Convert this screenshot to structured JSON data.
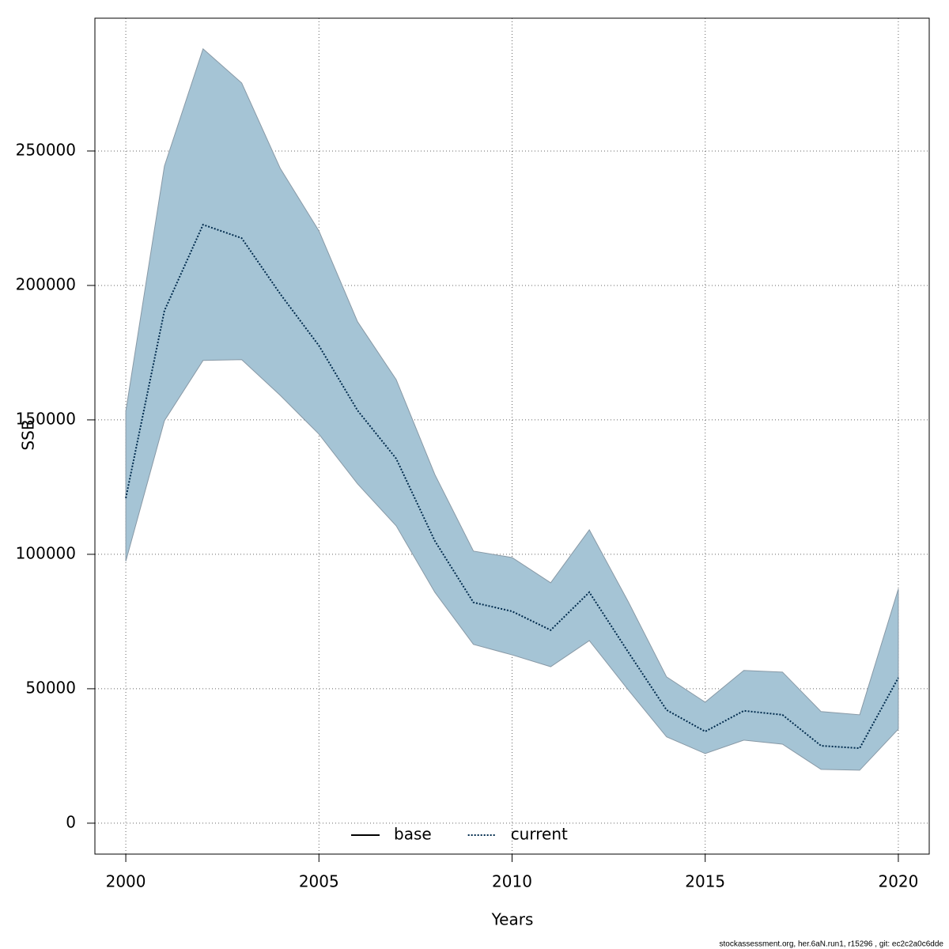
{
  "chart_data": {
    "type": "line",
    "x_label": "Years",
    "y_label": "SSB",
    "footer": "stockassessment.org, her.6aN.run1, r15296 , git: ec2c2a0c6dde",
    "x": [
      2000,
      2001,
      2002,
      2003,
      2004,
      2005,
      2006,
      2007,
      2008,
      2009,
      2010,
      2011,
      2012,
      2013,
      2014,
      2015,
      2016,
      2017,
      2018,
      2019,
      2020
    ],
    "series": [
      {
        "name": "base",
        "color": "#000000",
        "line": "solid"
      },
      {
        "name": "current",
        "color": "#002b4d",
        "line": "dotted",
        "band_color": "#a5c4d5",
        "values": [
          120900,
          190600,
          222600,
          217600,
          196800,
          177600,
          153500,
          135600,
          105000,
          82100,
          78800,
          71800,
          85900,
          63800,
          42100,
          34100,
          41800,
          40300,
          28800,
          27900,
          54100
        ],
        "lower": [
          97400,
          149700,
          172100,
          172400,
          159100,
          144700,
          126200,
          110600,
          85900,
          66500,
          62600,
          58200,
          67900,
          49700,
          32100,
          25900,
          30900,
          29400,
          20000,
          19700,
          35000
        ],
        "upper": [
          153200,
          244400,
          288000,
          275300,
          243500,
          220300,
          186500,
          165000,
          129700,
          101200,
          98800,
          89400,
          109100,
          82600,
          54400,
          45000,
          56800,
          56200,
          41500,
          40300,
          87100
        ]
      }
    ],
    "xlim": [
      1999.2,
      2020.8
    ],
    "ylim": [
      -11500,
      299400
    ],
    "xticks": [
      2000,
      2005,
      2010,
      2015,
      2020
    ],
    "yticks": [
      0,
      50000,
      100000,
      150000,
      200000,
      250000
    ],
    "grid": true,
    "legend": "bottom"
  }
}
